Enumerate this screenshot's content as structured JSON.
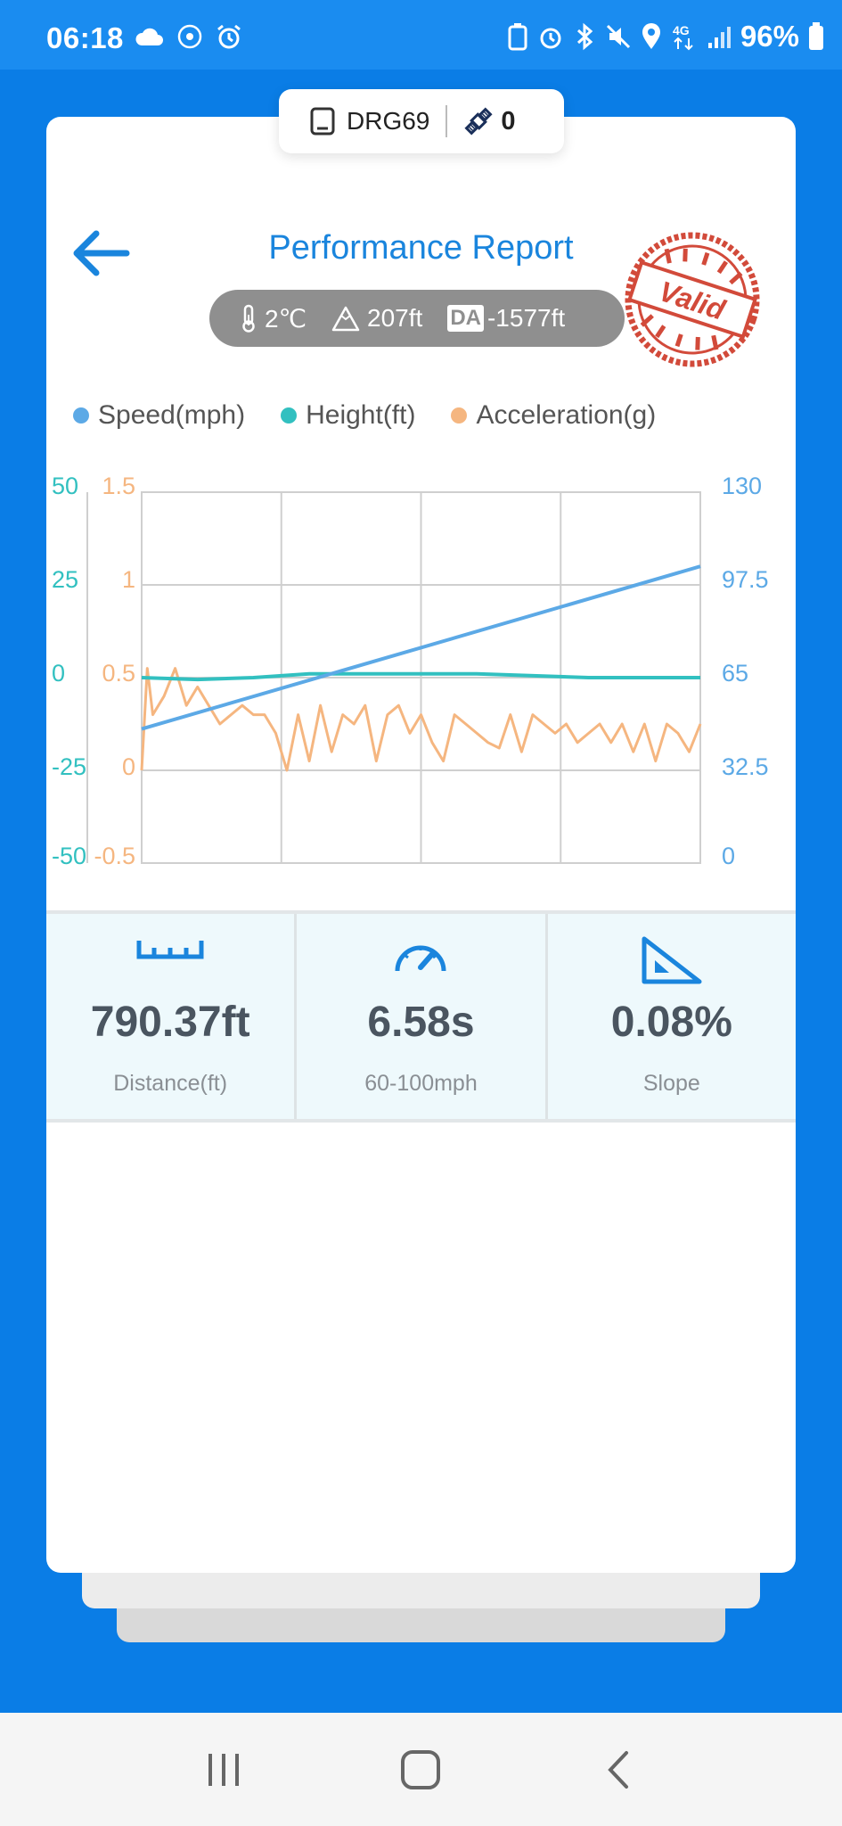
{
  "status_bar": {
    "time": "06:18",
    "battery": "96%",
    "network": "4G"
  },
  "device": {
    "name": "DRG69",
    "satellites": "0"
  },
  "header": {
    "title": "Performance Report",
    "stamp": "Valid"
  },
  "conditions": {
    "temperature": "2℃",
    "altitude": "207ft",
    "da_label": "DA",
    "density_altitude": "-1577ft"
  },
  "chart_data": {
    "type": "line",
    "legend_position": "top",
    "grid": true,
    "series": [
      {
        "name": "Speed(mph)",
        "color": "#5ca9e6",
        "axis": "right",
        "x": [
          0,
          1
        ],
        "y": [
          47,
          104
        ]
      },
      {
        "name": "Height(ft)",
        "color": "#32c0c0",
        "axis": "left-outer",
        "x": [
          0,
          0.1,
          0.2,
          0.3,
          0.6,
          0.8,
          1.0
        ],
        "y": [
          0,
          -0.5,
          0,
          1,
          1,
          0,
          0
        ]
      },
      {
        "name": "Acceleration(g)",
        "color": "#f5b680",
        "axis": "left-inner",
        "x": [
          0.0,
          0.01,
          0.02,
          0.04,
          0.06,
          0.08,
          0.1,
          0.12,
          0.14,
          0.16,
          0.18,
          0.2,
          0.22,
          0.24,
          0.26,
          0.28,
          0.3,
          0.32,
          0.34,
          0.36,
          0.38,
          0.4,
          0.42,
          0.44,
          0.46,
          0.48,
          0.5,
          0.52,
          0.54,
          0.56,
          0.58,
          0.6,
          0.62,
          0.64,
          0.66,
          0.68,
          0.7,
          0.72,
          0.74,
          0.76,
          0.78,
          0.8,
          0.82,
          0.84,
          0.86,
          0.88,
          0.9,
          0.92,
          0.94,
          0.96,
          0.98,
          1.0
        ],
        "y": [
          0,
          0.55,
          0.3,
          0.4,
          0.55,
          0.35,
          0.45,
          0.35,
          0.25,
          0.3,
          0.35,
          0.3,
          0.3,
          0.2,
          0.0,
          0.3,
          0.05,
          0.35,
          0.1,
          0.3,
          0.25,
          0.35,
          0.05,
          0.3,
          0.35,
          0.2,
          0.3,
          0.15,
          0.05,
          0.3,
          0.25,
          0.2,
          0.15,
          0.12,
          0.3,
          0.1,
          0.3,
          0.25,
          0.2,
          0.25,
          0.15,
          0.2,
          0.25,
          0.15,
          0.25,
          0.1,
          0.25,
          0.05,
          0.25,
          0.2,
          0.1,
          0.25
        ]
      }
    ],
    "axes": {
      "left_outer": {
        "ticks": [
          "50",
          "25",
          "0",
          "-25",
          "-50"
        ],
        "ylim": [
          -50,
          50
        ],
        "color": "#32c0c0"
      },
      "left_inner": {
        "ticks": [
          "1.5",
          "1",
          "0.5",
          "0",
          "-0.5"
        ],
        "ylim": [
          -0.5,
          1.5
        ],
        "color": "#f5b680"
      },
      "right": {
        "ticks": [
          "130",
          "97.5",
          "65",
          "32.5",
          "0"
        ],
        "ylim": [
          0,
          130
        ],
        "color": "#5ca9e6"
      }
    }
  },
  "stats": [
    {
      "value": "790.37ft",
      "label": "Distance(ft)",
      "icon": "ruler-icon"
    },
    {
      "value": "6.58s",
      "label": "60-100mph",
      "icon": "speedometer-icon"
    },
    {
      "value": "0.08%",
      "label": "Slope",
      "icon": "slope-icon"
    }
  ]
}
